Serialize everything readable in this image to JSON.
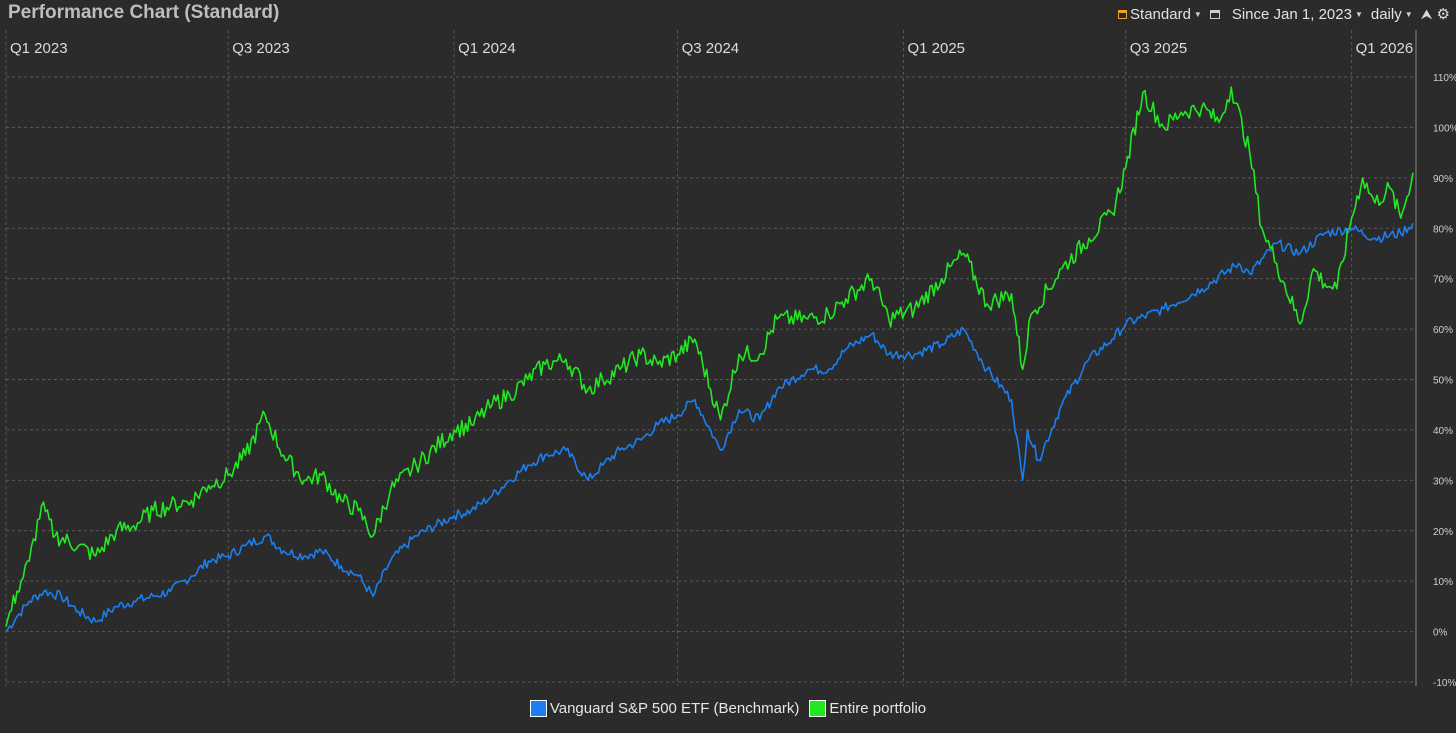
{
  "header": {
    "title": "Performance Chart (Standard)",
    "chart_mode": "Standard",
    "date_range": "Since Jan 1, 2023",
    "interval": "daily"
  },
  "icons": {
    "mode": "chart-standard-icon",
    "date": "calendar-icon",
    "export": "export-icon",
    "settings": "gear-icon"
  },
  "colors": {
    "background": "#2b2b2b",
    "benchmark": "#1a7ff0",
    "portfolio": "#22e822",
    "grid": "#5a5a5a"
  },
  "chart_data": {
    "type": "line",
    "x_range": [
      "2023-01-01",
      "2026-02-20"
    ],
    "x_ticks": [
      {
        "date": "2023-01-01",
        "label": "Q1 2023"
      },
      {
        "date": "2023-07-01",
        "label": "Q3 2023"
      },
      {
        "date": "2024-01-01",
        "label": "Q1 2024"
      },
      {
        "date": "2024-07-01",
        "label": "Q3 2024"
      },
      {
        "date": "2025-01-01",
        "label": "Q1 2025"
      },
      {
        "date": "2025-07-01",
        "label": "Q3 2025"
      },
      {
        "date": "2026-01-01",
        "label": "Q1 2026"
      }
    ],
    "ylim": [
      -10,
      110
    ],
    "y_ticks": [
      "-10%",
      "0%",
      "10%",
      "20%",
      "30%",
      "40%",
      "50%",
      "60%",
      "70%",
      "80%",
      "90%",
      "100%",
      "110%"
    ],
    "y_tick_values": [
      -10,
      0,
      10,
      20,
      30,
      40,
      50,
      60,
      70,
      80,
      90,
      100,
      110
    ],
    "grid": true,
    "legend_position": "bottom-center",
    "series": [
      {
        "name": "Vanguard S&P 500 ETF (Benchmark)",
        "color": "#1a7ff0",
        "points": [
          [
            "2023-01-01",
            0
          ],
          [
            "2023-01-10",
            3
          ],
          [
            "2023-01-20",
            6
          ],
          [
            "2023-02-01",
            8
          ],
          [
            "2023-02-15",
            7
          ],
          [
            "2023-03-01",
            4
          ],
          [
            "2023-03-15",
            2
          ],
          [
            "2023-04-01",
            5
          ],
          [
            "2023-04-15",
            6
          ],
          [
            "2023-05-01",
            7
          ],
          [
            "2023-05-15",
            8
          ],
          [
            "2023-06-01",
            11
          ],
          [
            "2023-06-15",
            14
          ],
          [
            "2023-07-01",
            15
          ],
          [
            "2023-07-15",
            17
          ],
          [
            "2023-08-01",
            19
          ],
          [
            "2023-08-15",
            16
          ],
          [
            "2023-09-01",
            15
          ],
          [
            "2023-09-15",
            16
          ],
          [
            "2023-10-01",
            13
          ],
          [
            "2023-10-15",
            11
          ],
          [
            "2023-10-27",
            7
          ],
          [
            "2023-11-10",
            14
          ],
          [
            "2023-12-01",
            19
          ],
          [
            "2024-01-01",
            23
          ],
          [
            "2024-01-15",
            24
          ],
          [
            "2024-02-01",
            27
          ],
          [
            "2024-02-15",
            30
          ],
          [
            "2024-03-01",
            33
          ],
          [
            "2024-03-15",
            35
          ],
          [
            "2024-04-01",
            36
          ],
          [
            "2024-04-19",
            30
          ],
          [
            "2024-05-01",
            33
          ],
          [
            "2024-05-15",
            36
          ],
          [
            "2024-06-01",
            38
          ],
          [
            "2024-06-15",
            41
          ],
          [
            "2024-07-01",
            43
          ],
          [
            "2024-07-15",
            46
          ],
          [
            "2024-08-05",
            36
          ],
          [
            "2024-08-20",
            44
          ],
          [
            "2024-09-06",
            42
          ],
          [
            "2024-09-20",
            48
          ],
          [
            "2024-10-15",
            52
          ],
          [
            "2024-11-01",
            52
          ],
          [
            "2024-11-15",
            56
          ],
          [
            "2024-12-06",
            59
          ],
          [
            "2024-12-20",
            55
          ],
          [
            "2025-01-10",
            55
          ],
          [
            "2025-02-01",
            57
          ],
          [
            "2025-02-19",
            60
          ],
          [
            "2025-03-10",
            52
          ],
          [
            "2025-03-30",
            46
          ],
          [
            "2025-04-08",
            30
          ],
          [
            "2025-04-12",
            40
          ],
          [
            "2025-04-21",
            34
          ],
          [
            "2025-05-10",
            45
          ],
          [
            "2025-06-01",
            54
          ],
          [
            "2025-06-20",
            58
          ],
          [
            "2025-07-01",
            61
          ],
          [
            "2025-08-01",
            64
          ],
          [
            "2025-09-01",
            68
          ],
          [
            "2025-10-01",
            73
          ],
          [
            "2025-10-10",
            71
          ],
          [
            "2025-11-01",
            77
          ],
          [
            "2025-11-20",
            75
          ],
          [
            "2025-12-10",
            79
          ],
          [
            "2026-01-01",
            80
          ],
          [
            "2026-01-20",
            78
          ],
          [
            "2026-02-10",
            79
          ],
          [
            "2026-02-20",
            81
          ]
        ]
      },
      {
        "name": "Entire portfolio",
        "color": "#22e822",
        "points": [
          [
            "2023-01-01",
            1
          ],
          [
            "2023-01-10",
            8
          ],
          [
            "2023-01-20",
            14
          ],
          [
            "2023-01-30",
            25
          ],
          [
            "2023-02-10",
            19
          ],
          [
            "2023-03-01",
            17
          ],
          [
            "2023-03-15",
            15
          ],
          [
            "2023-04-01",
            20
          ],
          [
            "2023-04-15",
            21
          ],
          [
            "2023-05-01",
            24
          ],
          [
            "2023-05-15",
            25
          ],
          [
            "2023-06-01",
            26
          ],
          [
            "2023-06-15",
            29
          ],
          [
            "2023-07-01",
            31
          ],
          [
            "2023-07-15",
            35
          ],
          [
            "2023-07-31",
            43
          ],
          [
            "2023-08-15",
            35
          ],
          [
            "2023-09-01",
            30
          ],
          [
            "2023-09-15",
            31
          ],
          [
            "2023-10-01",
            26
          ],
          [
            "2023-10-15",
            24
          ],
          [
            "2023-10-27",
            19
          ],
          [
            "2023-11-10",
            28
          ],
          [
            "2023-12-01",
            33
          ],
          [
            "2024-01-01",
            40
          ],
          [
            "2024-01-15",
            41
          ],
          [
            "2024-02-01",
            45
          ],
          [
            "2024-02-15",
            47
          ],
          [
            "2024-03-01",
            50
          ],
          [
            "2024-03-15",
            53
          ],
          [
            "2024-04-01",
            54
          ],
          [
            "2024-04-19",
            48
          ],
          [
            "2024-05-01",
            50
          ],
          [
            "2024-05-15",
            52
          ],
          [
            "2024-06-01",
            55
          ],
          [
            "2024-06-15",
            53
          ],
          [
            "2024-07-01",
            55
          ],
          [
            "2024-07-15",
            58
          ],
          [
            "2024-08-05",
            42
          ],
          [
            "2024-08-20",
            55
          ],
          [
            "2024-09-06",
            55
          ],
          [
            "2024-09-20",
            62
          ],
          [
            "2024-10-15",
            62
          ],
          [
            "2024-11-01",
            63
          ],
          [
            "2024-11-15",
            66
          ],
          [
            "2024-12-06",
            70
          ],
          [
            "2024-12-20",
            62
          ],
          [
            "2025-01-10",
            64
          ],
          [
            "2025-02-01",
            70
          ],
          [
            "2025-02-19",
            75
          ],
          [
            "2025-03-10",
            65
          ],
          [
            "2025-03-30",
            67
          ],
          [
            "2025-04-08",
            52
          ],
          [
            "2025-04-15",
            63
          ],
          [
            "2025-05-10",
            72
          ],
          [
            "2025-06-01",
            78
          ],
          [
            "2025-06-20",
            83
          ],
          [
            "2025-07-01",
            92
          ],
          [
            "2025-07-15",
            107
          ],
          [
            "2025-08-01",
            100
          ],
          [
            "2025-08-15",
            103
          ],
          [
            "2025-09-01",
            104
          ],
          [
            "2025-09-15",
            101
          ],
          [
            "2025-09-25",
            108
          ],
          [
            "2025-10-10",
            95
          ],
          [
            "2025-10-20",
            80
          ],
          [
            "2025-11-01",
            73
          ],
          [
            "2025-11-20",
            61
          ],
          [
            "2025-12-01",
            72
          ],
          [
            "2025-12-10",
            69
          ],
          [
            "2025-12-20",
            68
          ],
          [
            "2026-01-01",
            82
          ],
          [
            "2026-01-10",
            90
          ],
          [
            "2026-01-20",
            85
          ],
          [
            "2026-02-01",
            88
          ],
          [
            "2026-02-10",
            82
          ],
          [
            "2026-02-20",
            91
          ]
        ]
      }
    ]
  },
  "legend": [
    {
      "label": "Vanguard S&P 500 ETF (Benchmark)",
      "color": "#1a7ff0"
    },
    {
      "label": "Entire portfolio",
      "color": "#22e822"
    }
  ]
}
